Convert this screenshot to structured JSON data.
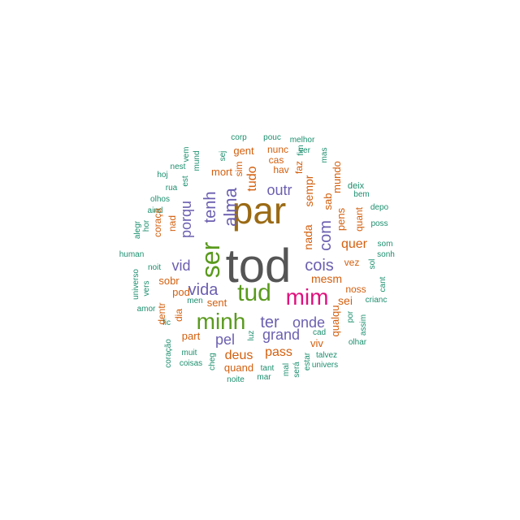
{
  "colors": {
    "gray": "#555555",
    "brown": "#9a6a14",
    "green": "#5a9a1e",
    "pink": "#e0117e",
    "purple": "#6b5fb0",
    "orange": "#d35f0e",
    "teal": "#1c8f6e"
  },
  "words": [
    {
      "text": "tod",
      "c": "gray"
    },
    {
      "text": "par",
      "c": "brown"
    },
    {
      "text": "ser",
      "c": "green"
    },
    {
      "text": "tud",
      "c": "green"
    },
    {
      "text": "mim",
      "c": "pink"
    },
    {
      "text": "minh",
      "c": "green"
    },
    {
      "text": "alma",
      "c": "purple"
    },
    {
      "text": "tenh",
      "c": "purple"
    },
    {
      "text": "porqu",
      "c": "purple"
    },
    {
      "text": "outr",
      "c": "purple"
    },
    {
      "text": "tudo",
      "c": "orange"
    },
    {
      "text": "com",
      "c": "purple"
    },
    {
      "text": "cois",
      "c": "purple"
    },
    {
      "text": "vida",
      "c": "purple"
    },
    {
      "text": "vid",
      "c": "purple"
    },
    {
      "text": "ter",
      "c": "purple"
    },
    {
      "text": "onde",
      "c": "purple"
    },
    {
      "text": "grand",
      "c": "purple"
    },
    {
      "text": "pel",
      "c": "purple"
    },
    {
      "text": "deus",
      "c": "orange"
    },
    {
      "text": "pass",
      "c": "orange"
    },
    {
      "text": "quer",
      "c": "orange"
    },
    {
      "text": "mesm",
      "c": "orange"
    },
    {
      "text": "nada",
      "c": "orange"
    },
    {
      "text": "sempr",
      "c": "orange"
    },
    {
      "text": "sab",
      "c": "orange"
    },
    {
      "text": "pens",
      "c": "orange"
    },
    {
      "text": "mundo",
      "c": "orange"
    },
    {
      "text": "qualqu",
      "c": "orange"
    },
    {
      "text": "sei",
      "c": "orange"
    },
    {
      "text": "viv",
      "c": "orange"
    },
    {
      "text": "sent",
      "c": "orange"
    },
    {
      "text": "sobr",
      "c": "orange"
    },
    {
      "text": "pod",
      "c": "orange"
    },
    {
      "text": "part",
      "c": "orange"
    },
    {
      "text": "quand",
      "c": "orange"
    },
    {
      "text": "mort",
      "c": "orange"
    },
    {
      "text": "gent",
      "c": "orange"
    },
    {
      "text": "nunc",
      "c": "orange"
    },
    {
      "text": "cas",
      "c": "orange"
    },
    {
      "text": "hav",
      "c": "orange"
    },
    {
      "text": "faz",
      "c": "orange"
    },
    {
      "text": "sim",
      "c": "orange"
    },
    {
      "text": "vez",
      "c": "orange"
    },
    {
      "text": "noss",
      "c": "orange"
    },
    {
      "text": "nad",
      "c": "orange"
    },
    {
      "text": "coraçã",
      "c": "orange"
    },
    {
      "text": "dia",
      "c": "orange"
    },
    {
      "text": "dentr",
      "c": "orange"
    },
    {
      "text": "quant",
      "c": "orange"
    },
    {
      "text": "deix",
      "c": "teal"
    },
    {
      "text": "corp",
      "c": "teal"
    },
    {
      "text": "pouc",
      "c": "teal"
    },
    {
      "text": "melhor",
      "c": "teal"
    },
    {
      "text": "ver",
      "c": "teal"
    },
    {
      "text": "vem",
      "c": "teal"
    },
    {
      "text": "mund",
      "c": "teal"
    },
    {
      "text": "sej",
      "c": "teal"
    },
    {
      "text": "est",
      "c": "teal"
    },
    {
      "text": "nest",
      "c": "teal"
    },
    {
      "text": "hoj",
      "c": "teal"
    },
    {
      "text": "rua",
      "c": "teal"
    },
    {
      "text": "olhos",
      "c": "teal"
    },
    {
      "text": "aind",
      "c": "teal"
    },
    {
      "text": "alegr",
      "c": "teal"
    },
    {
      "text": "hor",
      "c": "teal"
    },
    {
      "text": "human",
      "c": "teal"
    },
    {
      "text": "noit",
      "c": "teal"
    },
    {
      "text": "universo",
      "c": "teal"
    },
    {
      "text": "vers",
      "c": "teal"
    },
    {
      "text": "amor",
      "c": "teal"
    },
    {
      "text": "men",
      "c": "teal"
    },
    {
      "text": "fic",
      "c": "teal"
    },
    {
      "text": "coração",
      "c": "teal"
    },
    {
      "text": "muit",
      "c": "teal"
    },
    {
      "text": "coisas",
      "c": "teal"
    },
    {
      "text": "cheg",
      "c": "teal"
    },
    {
      "text": "tant",
      "c": "teal"
    },
    {
      "text": "noite",
      "c": "teal"
    },
    {
      "text": "mar",
      "c": "teal"
    },
    {
      "text": "mal",
      "c": "teal"
    },
    {
      "text": "será",
      "c": "teal"
    },
    {
      "text": "estar",
      "c": "teal"
    },
    {
      "text": "luz",
      "c": "teal"
    },
    {
      "text": "cad",
      "c": "teal"
    },
    {
      "text": "talvez",
      "c": "teal"
    },
    {
      "text": "univers",
      "c": "teal"
    },
    {
      "text": "olhar",
      "c": "teal"
    },
    {
      "text": "assim",
      "c": "teal"
    },
    {
      "text": "por",
      "c": "teal"
    },
    {
      "text": "crianc",
      "c": "teal"
    },
    {
      "text": "cant",
      "c": "teal"
    },
    {
      "text": "sol",
      "c": "teal"
    },
    {
      "text": "sonh",
      "c": "teal"
    },
    {
      "text": "som",
      "c": "teal"
    },
    {
      "text": "poss",
      "c": "teal"
    },
    {
      "text": "depo",
      "c": "teal"
    },
    {
      "text": "bem",
      "c": "teal"
    },
    {
      "text": "mas",
      "c": "teal"
    },
    {
      "text": "fim",
      "c": "teal"
    }
  ]
}
